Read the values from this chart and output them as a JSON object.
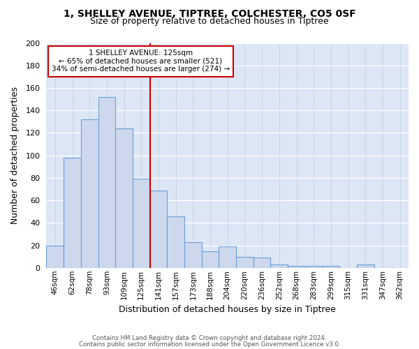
{
  "title_line1": "1, SHELLEY AVENUE, TIPTREE, COLCHESTER, CO5 0SF",
  "title_line2": "Size of property relative to detached houses in Tiptree",
  "xlabel": "Distribution of detached houses by size in Tiptree",
  "ylabel": "Number of detached properties",
  "categories": [
    "46sqm",
    "62sqm",
    "78sqm",
    "93sqm",
    "109sqm",
    "125sqm",
    "141sqm",
    "157sqm",
    "173sqm",
    "188sqm",
    "204sqm",
    "220sqm",
    "236sqm",
    "252sqm",
    "268sqm",
    "283sqm",
    "299sqm",
    "315sqm",
    "331sqm",
    "347sqm",
    "362sqm"
  ],
  "values": [
    20,
    98,
    132,
    152,
    124,
    79,
    69,
    46,
    23,
    15,
    19,
    10,
    9,
    3,
    2,
    2,
    2,
    0,
    3,
    0,
    0
  ],
  "bar_color": "#cdd8ed",
  "bar_edge_color": "#6a9fd8",
  "highlight_line_index": 5,
  "highlight_color": "#cc0000",
  "ylim": [
    0,
    200
  ],
  "yticks": [
    0,
    20,
    40,
    60,
    80,
    100,
    120,
    140,
    160,
    180,
    200
  ],
  "annotation_title": "1 SHELLEY AVENUE: 125sqm",
  "annotation_line1": "← 65% of detached houses are smaller (521)",
  "annotation_line2": "34% of semi-detached houses are larger (274) →",
  "annotation_box_color": "#ffffff",
  "annotation_box_edge": "#cc0000",
  "footer_line1": "Contains HM Land Registry data © Crown copyright and database right 2024.",
  "footer_line2": "Contains public sector information licensed under the Open Government Licence v3.0.",
  "fig_bg_color": "#ffffff",
  "plot_bg_color": "#dce6f5"
}
